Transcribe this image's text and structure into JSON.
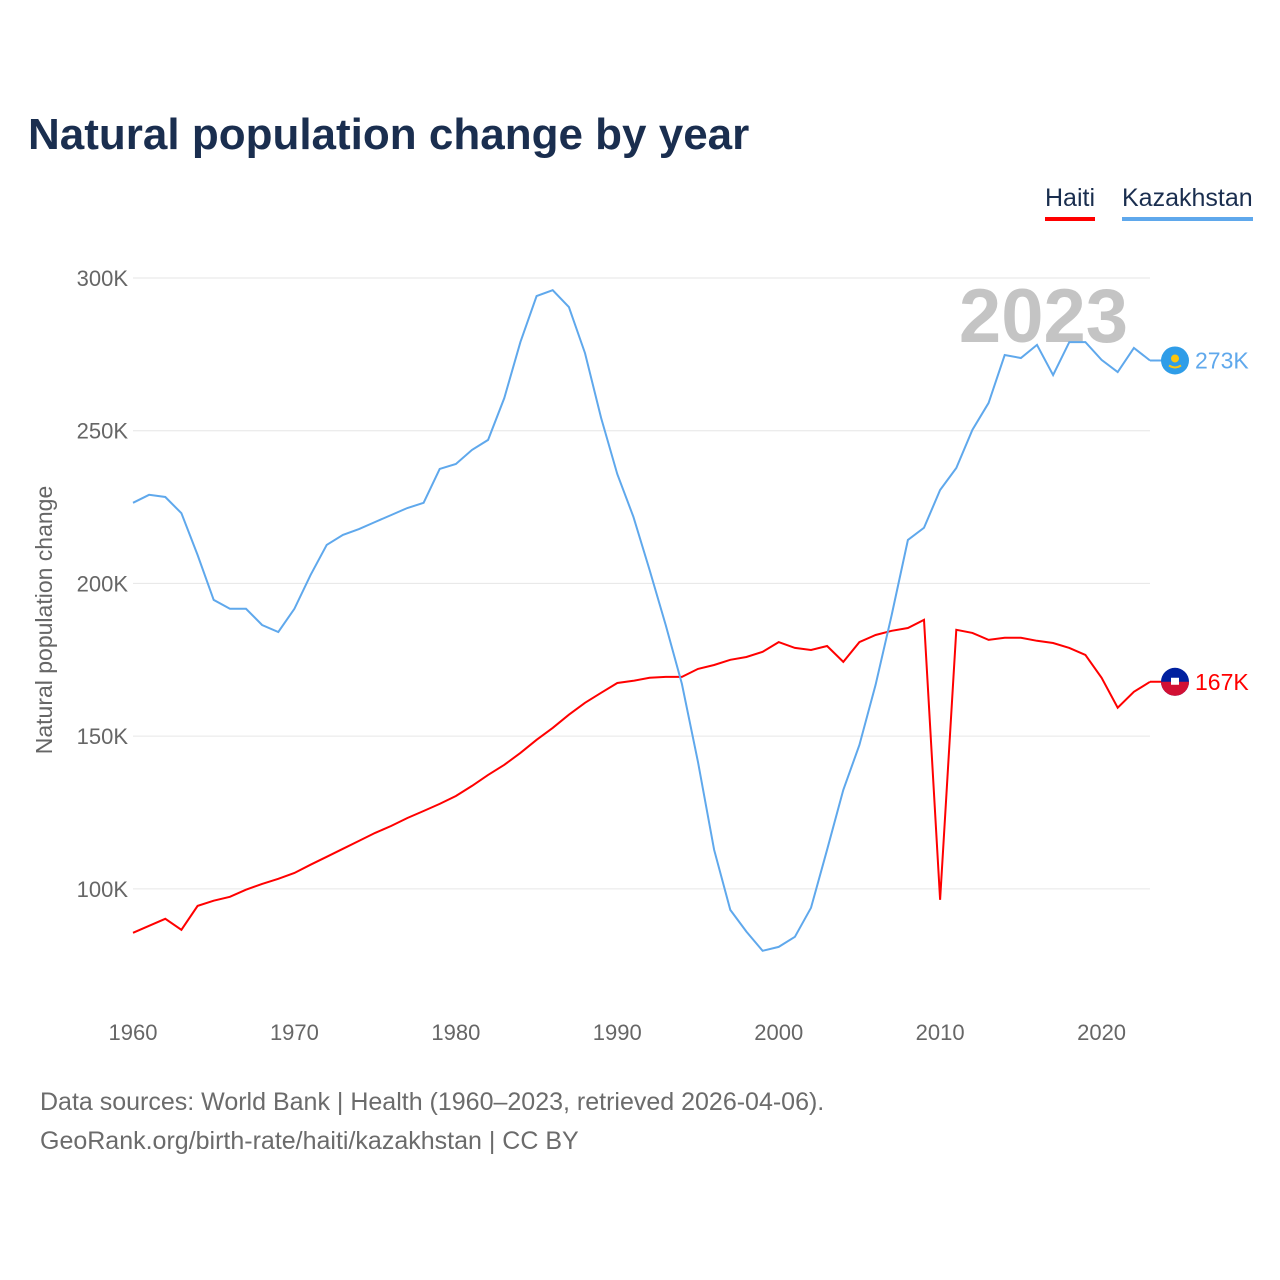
{
  "chart_data": {
    "type": "line",
    "title": "Natural population change by year",
    "xlabel": "",
    "ylabel": "Natural population change",
    "xlim": [
      1960,
      2023
    ],
    "ylim": [
      60,
      300
    ],
    "x_ticks": [
      1960,
      1970,
      1980,
      1990,
      2000,
      2010,
      2020
    ],
    "y_ticks": [
      100,
      150,
      200,
      250,
      300
    ],
    "y_tick_labels": [
      "100K",
      "150K",
      "200K",
      "250K",
      "300K"
    ],
    "grid": true,
    "legend_placement": "top-right",
    "year_watermark": "2023",
    "x": [
      1960,
      1961,
      1962,
      1963,
      1964,
      1965,
      1966,
      1967,
      1968,
      1969,
      1970,
      1971,
      1972,
      1973,
      1974,
      1975,
      1976,
      1977,
      1978,
      1979,
      1980,
      1981,
      1982,
      1983,
      1984,
      1985,
      1986,
      1987,
      1988,
      1989,
      1990,
      1991,
      1992,
      1993,
      1994,
      1995,
      1996,
      1997,
      1998,
      1999,
      2000,
      2001,
      2002,
      2003,
      2004,
      2005,
      2006,
      2007,
      2008,
      2009,
      2010,
      2011,
      2012,
      2013,
      2014,
      2015,
      2016,
      2017,
      2018,
      2019,
      2020,
      2021,
      2022,
      2023
    ],
    "series": [
      {
        "name": "Haiti",
        "color": "#ff0000",
        "end_label": "167K",
        "values": [
          85.6,
          87.9,
          90.2,
          86.6,
          94.4,
          96.1,
          97.4,
          99.7,
          101.6,
          103.3,
          105.2,
          107.9,
          110.5,
          113.1,
          115.7,
          118.3,
          120.6,
          123.2,
          125.5,
          127.8,
          130.4,
          133.7,
          137.3,
          140.6,
          144.5,
          148.8,
          152.7,
          157.0,
          160.9,
          164.2,
          167.4,
          168.1,
          169.1,
          169.4,
          169.4,
          172.0,
          173.3,
          175.0,
          175.9,
          177.6,
          180.8,
          178.9,
          178.2,
          179.5,
          174.3,
          180.8,
          183.1,
          184.5,
          185.4,
          188.1,
          96.4,
          184.8,
          183.8,
          181.5,
          182.2,
          182.2,
          181.2,
          180.5,
          178.9,
          176.6,
          169.1,
          159.3,
          164.5,
          167.8
        ]
      },
      {
        "name": "Kazakhstan",
        "color": "#5fa8ec",
        "end_label": "273K",
        "values": [
          226.4,
          229.0,
          228.3,
          223.0,
          209.3,
          194.6,
          191.7,
          191.7,
          186.4,
          184.1,
          191.7,
          202.8,
          212.6,
          215.9,
          217.8,
          220.1,
          222.4,
          224.7,
          226.4,
          237.5,
          239.1,
          243.7,
          247.0,
          260.7,
          279.0,
          294.1,
          296.0,
          290.5,
          275.4,
          254.2,
          235.8,
          221.8,
          204.4,
          186.4,
          167.1,
          141.5,
          112.8,
          93.1,
          86.0,
          79.7,
          81.0,
          84.3,
          93.8,
          112.8,
          132.4,
          147.1,
          166.8,
          189.7,
          214.2,
          218.2,
          230.6,
          237.8,
          250.3,
          259.1,
          274.8,
          273.8,
          278.1,
          268.2,
          279.0,
          279.0,
          273.2,
          269.2,
          277.1,
          273.0
        ]
      }
    ]
  },
  "footer": {
    "line1": "Data sources: World Bank | Health (1960–2023, retrieved 2026-04-06).",
    "line2": "GeoRank.org/birth-rate/haiti/kazakhstan | CC BY"
  }
}
